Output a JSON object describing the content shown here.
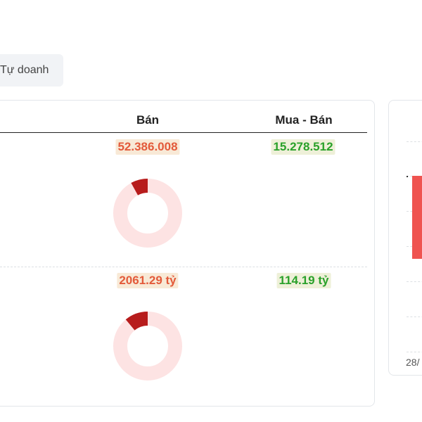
{
  "tabs": [
    {
      "label": "Tự doanh"
    }
  ],
  "table": {
    "columns": [
      "Bán",
      "Mua - Bán"
    ],
    "rows": [
      {
        "ban": "52.386.008",
        "mua_ban": "15.278.512",
        "donut_fraction": 0.08
      },
      {
        "ban": "2061.29 tỷ",
        "mua_ban": "114.19 tỷ",
        "donut_fraction": 0.11
      }
    ]
  },
  "side_chart": {
    "x_tick_partial": "28/"
  },
  "colors": {
    "sell": "#e35a3a",
    "net_positive": "#2aa12a",
    "donut_fill": "#b71c1c",
    "donut_track": "#fde3e3",
    "bar": "#ef5350"
  }
}
